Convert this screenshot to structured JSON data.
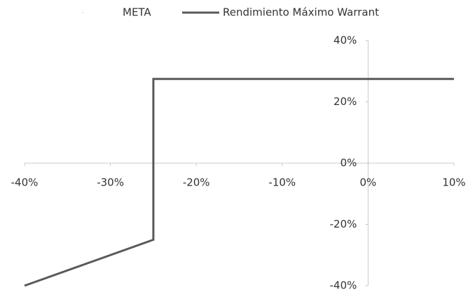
{
  "chart_data": {
    "type": "line",
    "series": [
      {
        "name": "META",
        "color": "#d9d9d9",
        "x": [],
        "values": []
      },
      {
        "name": "Rendimiento Máximo Warrant",
        "color": "#595959",
        "x": [
          -40,
          -25,
          -25,
          10
        ],
        "values": [
          -40,
          -25,
          27.5,
          27.5
        ]
      }
    ],
    "xlim": [
      -40,
      10
    ],
    "xticks": [
      {
        "value": -40,
        "label": "-40%"
      },
      {
        "value": -30,
        "label": "-30%"
      },
      {
        "value": -20,
        "label": "-20%"
      },
      {
        "value": -10,
        "label": "-10%"
      },
      {
        "value": 0,
        "label": "0%"
      },
      {
        "value": 10,
        "label": "10%"
      }
    ],
    "ylim": [
      -40,
      40
    ],
    "yticks": [
      {
        "value": -40,
        "label": "-40%"
      },
      {
        "value": -20,
        "label": "-20%"
      },
      {
        "value": 0,
        "label": "0%"
      },
      {
        "value": 20,
        "label": "20%"
      },
      {
        "value": 40,
        "label": "40%"
      }
    ],
    "legend": "top"
  }
}
